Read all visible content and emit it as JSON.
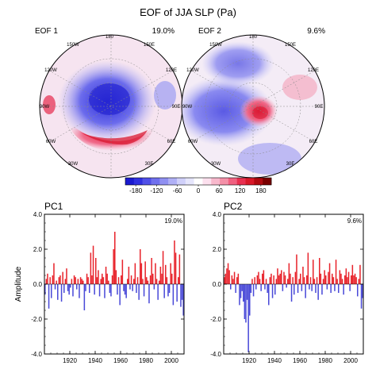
{
  "figure": {
    "title": "EOF of JJA SLP (Pa)",
    "colors": {
      "positive": "#e8242c",
      "negative": "#4a4ad8",
      "frame": "#000000"
    }
  },
  "maps": [
    {
      "label": "EOF 1",
      "variance": "19.0%",
      "lon_labels": [
        "180",
        "150W",
        "150E",
        "120W",
        "120E",
        "90W",
        "90E",
        "60W",
        "60E",
        "30W",
        "30E"
      ],
      "pattern": "negative-center-positive-ring"
    },
    {
      "label": "EOF 2",
      "variance": "9.6%",
      "lon_labels": [
        "180",
        "150W",
        "150E",
        "120W",
        "120E",
        "90W",
        "90E",
        "60W",
        "60E",
        "30W",
        "30E"
      ],
      "pattern": "negative-west-positive-center"
    }
  ],
  "colorbar": {
    "ticks": [
      "-180",
      "-120",
      "-60",
      "0",
      "60",
      "120",
      "180"
    ],
    "colors": [
      "#1a1ad0",
      "#3030e0",
      "#5050e8",
      "#7070ee",
      "#9090f2",
      "#b0b0f6",
      "#d0d0fa",
      "#e6e6fc",
      "#ffffff",
      "#fce0ee",
      "#f8b8cc",
      "#f490a8",
      "#f06080",
      "#e83050",
      "#d81828",
      "#b00a10",
      "#7a0000"
    ]
  },
  "chart_data": [
    {
      "type": "bar",
      "title": "PC1",
      "variance_label": "19.0%",
      "ylabel": "Amplitude",
      "ylim": [
        -4.0,
        4.0
      ],
      "yticks": [
        "-4.0",
        "-2.0",
        "0.0",
        "2.0",
        "4.0"
      ],
      "xticks": [
        "1920",
        "1940",
        "1960",
        "1980",
        "2000"
      ],
      "xlim": [
        1900,
        2010
      ],
      "x_start": 1900,
      "x_end": 2009,
      "values": [
        -0.6,
        0.3,
        0.6,
        -1.4,
        0.4,
        -0.8,
        0.5,
        1.2,
        -0.3,
        0.2,
        -0.9,
        0.4,
        0.5,
        -1.0,
        0.7,
        -0.5,
        0.3,
        0.9,
        -0.4,
        -0.6,
        -0.2,
        0.3,
        -0.7,
        0.5,
        0.4,
        -0.3,
        0.3,
        -0.8,
        0.4,
        0.3,
        0.2,
        -1.5,
        -0.4,
        0.6,
        0.4,
        -0.5,
        1.8,
        0.5,
        2.2,
        -0.6,
        1.5,
        0.4,
        0.8,
        -0.7,
        0.3,
        0.6,
        0.4,
        -0.8,
        1.0,
        0.6,
        0.2,
        -0.5,
        -0.7,
        0.5,
        2.0,
        3.0,
        0.8,
        -0.6,
        0.4,
        -1.2,
        0.5,
        1.4,
        -0.4,
        -0.6,
        -0.8,
        0.3,
        1.0,
        -0.3,
        0.5,
        -0.4,
        0.3,
        1.2,
        -0.5,
        0.4,
        -0.9,
        2.0,
        1.2,
        0.3,
        -0.7,
        1.3,
        0.4,
        0.2,
        -1.1,
        0.5,
        1.5,
        0.6,
        -0.3,
        1.2,
        0.3,
        -0.9,
        0.2,
        1.0,
        0.6,
        1.9,
        -0.8,
        1.1,
        0.4,
        -0.7,
        -0.5,
        1.2,
        0.6,
        -1.2,
        2.5,
        1.8,
        -1.0,
        0.4,
        1.7,
        -1.3,
        -0.9,
        -1.8
      ]
    },
    {
      "type": "bar",
      "title": "PC2",
      "variance_label": "9.6%",
      "ylabel": "",
      "ylim": [
        -4.0,
        4.0
      ],
      "yticks": [
        "-4.0",
        "-2.0",
        "0.0",
        "2.0",
        "4.0"
      ],
      "xticks": [
        "1920",
        "1940",
        "1960",
        "1980",
        "2000"
      ],
      "xlim": [
        1900,
        2010
      ],
      "x_start": 1900,
      "x_end": 2009,
      "values": [
        0.4,
        0.6,
        0.9,
        1.2,
        0.8,
        -0.3,
        0.5,
        0.3,
        0.7,
        -0.5,
        0.4,
        0.6,
        -1.2,
        -0.8,
        -0.4,
        -1.0,
        -2.0,
        -2.2,
        -0.9,
        -3.9,
        -1.8,
        -0.5,
        0.3,
        -0.7,
        0.4,
        -0.3,
        0.5,
        0.7,
        0.3,
        -0.4,
        0.6,
        0.8,
        -0.3,
        0.3,
        -0.5,
        -1.2,
        0.4,
        0.6,
        -0.8,
        0.5,
        -0.6,
        0.3,
        0.9,
        0.5,
        0.6,
        0.8,
        -0.4,
        0.7,
        0.5,
        -0.2,
        0.3,
        1.2,
        0.6,
        -1.0,
        0.4,
        -0.6,
        0.7,
        1.7,
        -0.5,
        0.3,
        0.6,
        -0.4,
        1.0,
        0.4,
        -0.8,
        0.5,
        1.8,
        -0.3,
        0.4,
        -0.4,
        1.4,
        0.3,
        -0.5,
        0.4,
        -0.9,
        1.5,
        0.6,
        -0.6,
        0.3,
        0.8,
        0.5,
        -0.3,
        0.7,
        1.2,
        -0.5,
        0.6,
        0.4,
        -0.4,
        1.4,
        0.3,
        -0.5,
        0.8,
        0.6,
        0.3,
        -0.6,
        0.5,
        0.9,
        0.4,
        0.7,
        -0.4,
        0.5,
        1.1,
        0.5,
        0.6,
        0.4,
        -0.7,
        0.3,
        1.1,
        -1.4,
        -0.8
      ]
    }
  ]
}
